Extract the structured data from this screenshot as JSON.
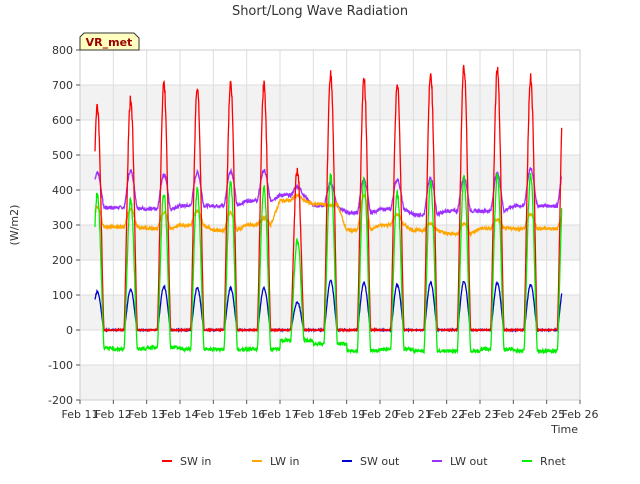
{
  "chart_data": {
    "type": "line",
    "title": "Short/Long Wave Radiation",
    "xlabel": "Time",
    "ylabel": "(W/m2)",
    "station_label": "VR_met",
    "ylim": [
      -200,
      800
    ],
    "xlim": [
      0,
      15
    ],
    "y_ticks": [
      -200,
      -100,
      0,
      100,
      200,
      300,
      400,
      500,
      600,
      700,
      800
    ],
    "x_ticks": [
      {
        "x": 0,
        "label": "Feb 11"
      },
      {
        "x": 1,
        "label": "Feb 12"
      },
      {
        "x": 2,
        "label": "Feb 13"
      },
      {
        "x": 3,
        "label": "Feb 14"
      },
      {
        "x": 4,
        "label": "Feb 15"
      },
      {
        "x": 5,
        "label": "Feb 16"
      },
      {
        "x": 6,
        "label": "Feb 17"
      },
      {
        "x": 7,
        "label": "Feb 18"
      },
      {
        "x": 8,
        "label": "Feb 19"
      },
      {
        "x": 9,
        "label": "Feb 20"
      },
      {
        "x": 10,
        "label": "Feb 21"
      },
      {
        "x": 11,
        "label": "Feb 22"
      },
      {
        "x": 12,
        "label": "Feb 23"
      },
      {
        "x": 13,
        "label": "Feb 24"
      },
      {
        "x": 14,
        "label": "Feb 25"
      },
      {
        "x": 15,
        "label": "Feb 26"
      }
    ],
    "x_unit": "days since Feb 11",
    "grid": true,
    "bands": "alternating light gray horizontal bands",
    "legend_position": "bottom",
    "series": [
      {
        "name": "SW in",
        "color": "#ff0000",
        "role": "sw_in",
        "daily_peak": [
          640,
          660,
          700,
          695,
          705,
          700,
          460,
          730,
          715,
          705,
          735,
          750,
          740,
          720
        ]
      },
      {
        "name": "LW in",
        "color": "#ffa500",
        "role": "lw_in",
        "daily_night": [
          295,
          295,
          290,
          300,
          285,
          300,
          370,
          360,
          285,
          300,
          285,
          275,
          290,
          290
        ],
        "daily_peak": [
          350,
          345,
          335,
          340,
          335,
          320,
          385,
          355,
          385,
          330,
          305,
          305,
          315,
          330
        ]
      },
      {
        "name": "SW out",
        "color": "#0000cc",
        "role": "sw_out",
        "daily_peak": [
          110,
          115,
          125,
          120,
          120,
          120,
          80,
          140,
          135,
          130,
          135,
          140,
          135,
          130
        ]
      },
      {
        "name": "LW out",
        "color": "#9b30ff",
        "role": "lw_out",
        "daily_night": [
          350,
          350,
          345,
          355,
          355,
          370,
          385,
          355,
          335,
          345,
          330,
          340,
          340,
          355
        ],
        "daily_peak": [
          450,
          455,
          445,
          450,
          455,
          455,
          410,
          420,
          430,
          430,
          435,
          435,
          448,
          460
        ]
      },
      {
        "name": "Rnet",
        "color": "#00ee00",
        "role": "rnet",
        "daily_night": [
          -50,
          -55,
          -50,
          -55,
          -55,
          -55,
          -30,
          -40,
          -60,
          -55,
          -60,
          -60,
          -55,
          -60
        ],
        "daily_peak": [
          390,
          370,
          395,
          400,
          420,
          410,
          260,
          440,
          430,
          390,
          420,
          430,
          440,
          440
        ]
      }
    ]
  }
}
